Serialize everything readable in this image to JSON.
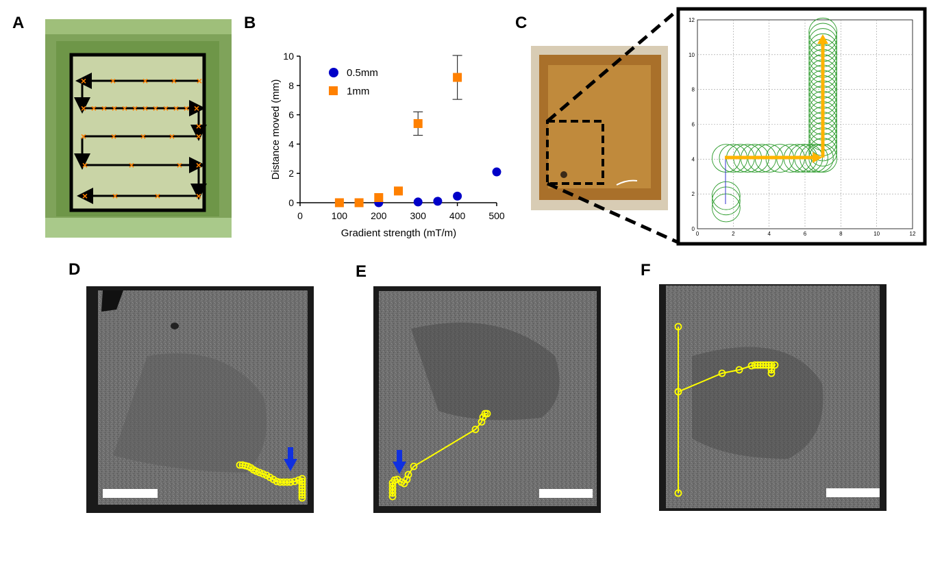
{
  "panels": {
    "A": {
      "letter": "A"
    },
    "B": {
      "letter": "B"
    },
    "C": {
      "letter": "C"
    },
    "D": {
      "letter": "D"
    },
    "E": {
      "letter": "E"
    },
    "F": {
      "letter": "F"
    }
  },
  "colors": {
    "orange": "#ff8000",
    "blue": "#0000c8",
    "yellow": "#ffff00",
    "arrow_gold": "#ffb400",
    "green_circle": "#2a9a2a",
    "black": "#000000"
  },
  "chart_data": [
    {
      "panel": "B",
      "type": "scatter",
      "xlabel": "Gradient strength (mT/m)",
      "ylabel": "Distance moved (mm)",
      "xlim": [
        0,
        500
      ],
      "ylim": [
        0,
        10
      ],
      "x_ticks": [
        0,
        100,
        200,
        300,
        400,
        500
      ],
      "y_ticks": [
        0,
        2,
        4,
        6,
        8,
        10
      ],
      "legend_position": "top-left",
      "series": [
        {
          "name": "0.5mm",
          "marker": "circle",
          "color": "#0000c8",
          "points": [
            [
              200,
              0.0
            ],
            [
              300,
              0.05
            ],
            [
              350,
              0.1
            ],
            [
              400,
              0.45
            ],
            [
              500,
              2.1
            ]
          ]
        },
        {
          "name": "1mm",
          "marker": "square",
          "color": "#ff8000",
          "points": [
            [
              100,
              0.0
            ],
            [
              150,
              0.0
            ],
            [
              200,
              0.35
            ],
            [
              250,
              0.8
            ],
            [
              300,
              5.4
            ],
            [
              400,
              8.55
            ]
          ],
          "error": [
            0,
            0,
            0,
            0,
            0.8,
            1.5
          ]
        }
      ]
    },
    {
      "panel": "C",
      "type": "scatter",
      "xlim": [
        0,
        12
      ],
      "ylim": [
        0,
        12
      ],
      "x_ticks": [
        0,
        2,
        4,
        6,
        8,
        10,
        12
      ],
      "y_ticks": [
        0,
        2,
        4,
        6,
        8,
        10,
        12
      ],
      "grid": true,
      "series": [
        {
          "marker": "open-circle",
          "color": "#2a9a2a",
          "points": [
            [
              1.6,
              1.2
            ],
            [
              1.6,
              1.6
            ],
            [
              1.6,
              1.9
            ],
            [
              1.6,
              4.05
            ],
            [
              2.0,
              4.05
            ],
            [
              2.4,
              4.05
            ],
            [
              2.8,
              4.05
            ],
            [
              3.2,
              4.05
            ],
            [
              3.6,
              4.05
            ],
            [
              4.0,
              4.05
            ],
            [
              4.6,
              4.05
            ],
            [
              5.2,
              4.05
            ],
            [
              5.6,
              4.05
            ],
            [
              5.9,
              4.05
            ],
            [
              6.2,
              4.05
            ],
            [
              6.5,
              4.05
            ],
            [
              6.8,
              4.05
            ],
            [
              7.0,
              4.05
            ],
            [
              7.0,
              4.4
            ],
            [
              7.0,
              4.7
            ],
            [
              7.0,
              5.0
            ],
            [
              7.0,
              5.3
            ],
            [
              7.0,
              5.6
            ],
            [
              7.0,
              5.9
            ],
            [
              7.0,
              6.2
            ],
            [
              7.0,
              6.5
            ],
            [
              7.0,
              6.8
            ],
            [
              7.0,
              7.1
            ],
            [
              7.0,
              7.4
            ],
            [
              7.0,
              7.7
            ],
            [
              7.0,
              8.0
            ],
            [
              7.0,
              8.3
            ],
            [
              7.0,
              8.6
            ],
            [
              7.0,
              8.9
            ],
            [
              7.0,
              9.2
            ],
            [
              7.0,
              9.5
            ],
            [
              7.0,
              9.8
            ],
            [
              7.0,
              10.1
            ],
            [
              7.0,
              10.4
            ],
            [
              7.0,
              10.7
            ],
            [
              7.0,
              11.0
            ],
            [
              7.0,
              11.3
            ]
          ]
        }
      ]
    }
  ]
}
